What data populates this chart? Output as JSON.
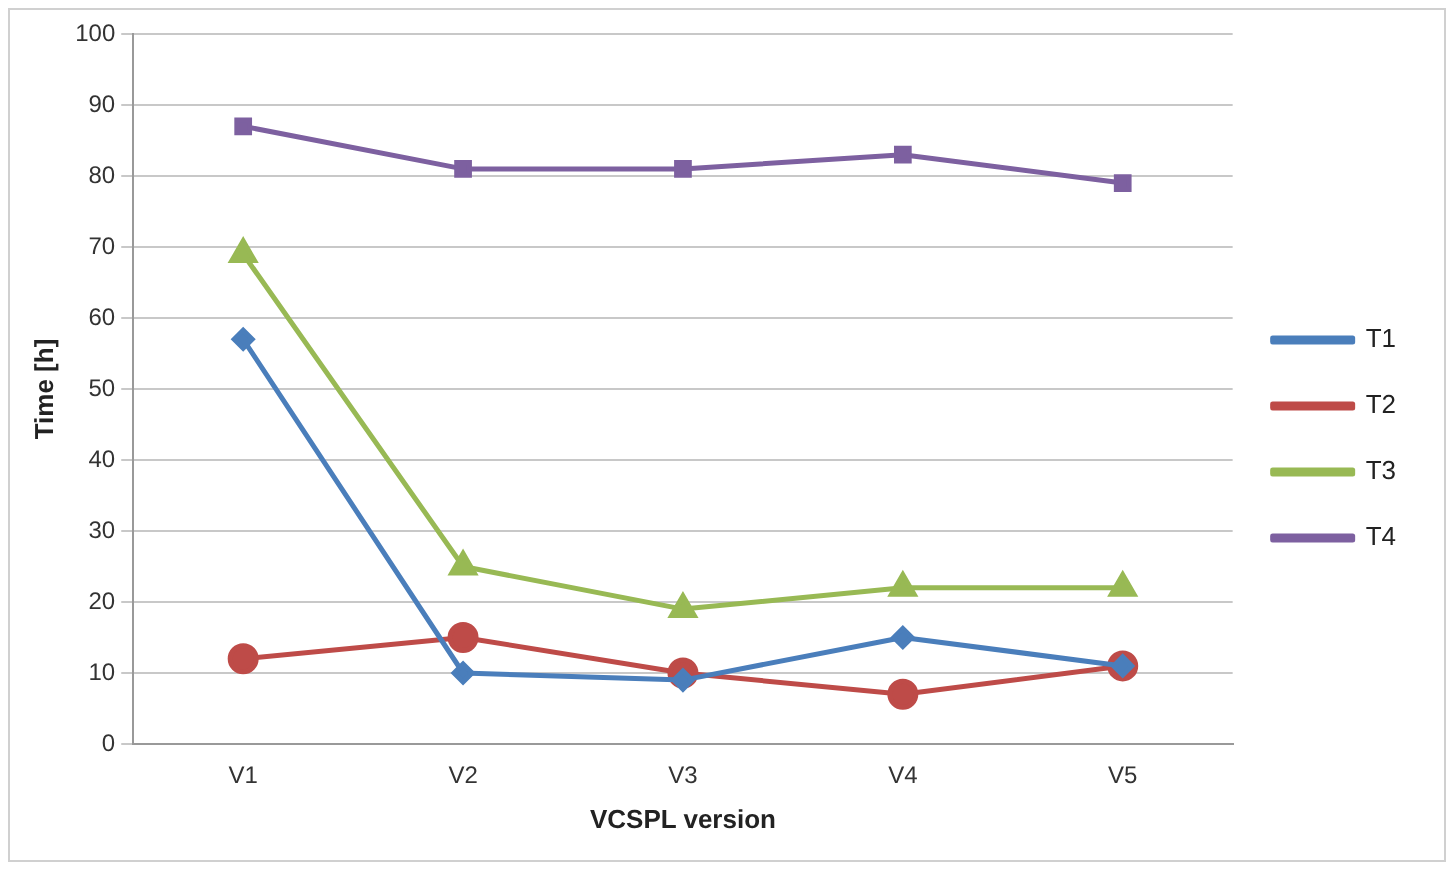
{
  "chart_data": {
    "type": "line",
    "xlabel": "VCSPL version",
    "ylabel": "Time [h]",
    "categories": [
      "V1",
      "V2",
      "V3",
      "V4",
      "V5"
    ],
    "series": [
      {
        "name": "T1",
        "color": "#4a7ebb",
        "marker": "diamond",
        "values": [
          57,
          10,
          9,
          15,
          11
        ]
      },
      {
        "name": "T2",
        "color": "#be4b48",
        "marker": "circle",
        "values": [
          12,
          15,
          10,
          7,
          11
        ]
      },
      {
        "name": "T3",
        "color": "#98b954",
        "marker": "triangle",
        "values": [
          69,
          25,
          19,
          22,
          22
        ]
      },
      {
        "name": "T4",
        "color": "#7d60a0",
        "marker": "square",
        "values": [
          87,
          81,
          81,
          83,
          79
        ]
      }
    ],
    "ylim": [
      0,
      100
    ],
    "yticks": [
      0,
      10,
      20,
      30,
      40,
      50,
      60,
      70,
      80,
      90,
      100
    ],
    "grid": "y",
    "legend": "right",
    "line_style": "solid"
  }
}
